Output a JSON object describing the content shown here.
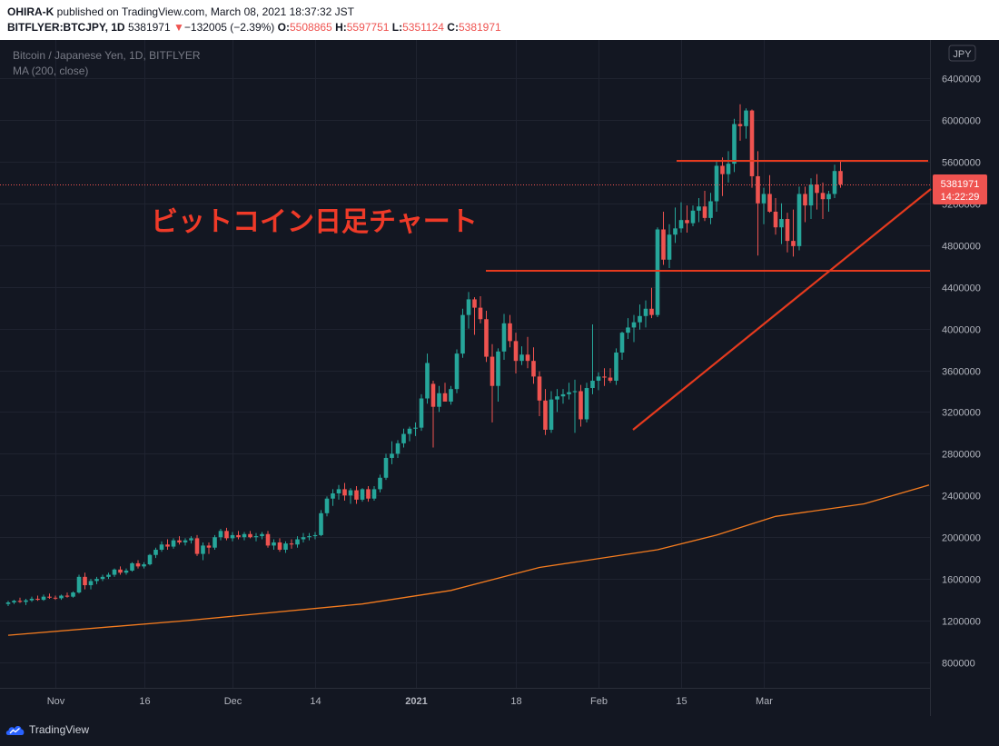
{
  "header": {
    "author": "OHIRA-K",
    "published_text": "published on TradingView.com, March 08, 2021 18:37:32 JST",
    "symbol": "BITFLYER:BTCJPY, 1D",
    "last_price": "5381971",
    "change_arrow": "▼",
    "change": "−132005 (−2.39%)",
    "o_label": "O:",
    "open": "5508865",
    "h_label": "H:",
    "high": "5597751",
    "l_label": "L:",
    "low": "5351124",
    "c_label": "C:",
    "close": "5381971"
  },
  "legend": {
    "title": "Bitcoin / Japanese Yen, 1D, BITFLYER",
    "indicator": "MA (200, close)"
  },
  "annotation": "ビットコイン日足チャート",
  "price_label": {
    "value": "5381971",
    "countdown": "14:22:29"
  },
  "currency": "JPY",
  "footer": {
    "brand": "TradingView"
  },
  "colors": {
    "up": "#26a69a",
    "down": "#ef5350",
    "ma": "#f57c1f",
    "drawing": "#e53a1e",
    "background": "#131722",
    "grid": "#1f2330",
    "axis_text": "#b2b5be"
  },
  "chart_data": {
    "type": "candlestick",
    "title": "Bitcoin / Japanese Yen, 1D, BITFLYER",
    "ylim": [
      400000,
      6800000
    ],
    "y_ticks": [
      800000,
      1200000,
      1600000,
      2000000,
      2400000,
      2800000,
      3200000,
      3600000,
      4000000,
      4400000,
      4800000,
      5200000,
      5600000,
      6000000,
      6400000
    ],
    "x_ticks": [
      {
        "label": "Nov",
        "bar": 8
      },
      {
        "label": "16",
        "bar": 23
      },
      {
        "label": "Dec",
        "bar": 38
      },
      {
        "label": "14",
        "bar": 52
      },
      {
        "label": "2021",
        "bar": 69
      },
      {
        "label": "18",
        "bar": 86
      },
      {
        "label": "Feb",
        "bar": 100
      },
      {
        "label": "15",
        "bar": 114
      },
      {
        "label": "Mar",
        "bar": 128
      }
    ],
    "ohlc": [
      [
        1360000,
        1390000,
        1340000,
        1375000
      ],
      [
        1375000,
        1400000,
        1360000,
        1390000
      ],
      [
        1390000,
        1420000,
        1370000,
        1380000
      ],
      [
        1380000,
        1410000,
        1350000,
        1395000
      ],
      [
        1395000,
        1430000,
        1380000,
        1410000
      ],
      [
        1410000,
        1440000,
        1390000,
        1400000
      ],
      [
        1400000,
        1450000,
        1390000,
        1430000
      ],
      [
        1430000,
        1460000,
        1410000,
        1420000
      ],
      [
        1420000,
        1440000,
        1400000,
        1415000
      ],
      [
        1415000,
        1450000,
        1400000,
        1440000
      ],
      [
        1440000,
        1470000,
        1420000,
        1430000
      ],
      [
        1430000,
        1480000,
        1420000,
        1470000
      ],
      [
        1470000,
        1640000,
        1460000,
        1620000
      ],
      [
        1620000,
        1660000,
        1500000,
        1540000
      ],
      [
        1540000,
        1600000,
        1500000,
        1580000
      ],
      [
        1580000,
        1620000,
        1550000,
        1600000
      ],
      [
        1600000,
        1640000,
        1580000,
        1620000
      ],
      [
        1620000,
        1660000,
        1600000,
        1640000
      ],
      [
        1640000,
        1700000,
        1620000,
        1690000
      ],
      [
        1690000,
        1720000,
        1640000,
        1660000
      ],
      [
        1660000,
        1700000,
        1640000,
        1680000
      ],
      [
        1680000,
        1760000,
        1670000,
        1750000
      ],
      [
        1750000,
        1780000,
        1700000,
        1720000
      ],
      [
        1720000,
        1760000,
        1700000,
        1740000
      ],
      [
        1740000,
        1840000,
        1730000,
        1830000
      ],
      [
        1830000,
        1900000,
        1800000,
        1880000
      ],
      [
        1880000,
        1960000,
        1860000,
        1930000
      ],
      [
        1930000,
        1980000,
        1880000,
        1910000
      ],
      [
        1910000,
        1990000,
        1890000,
        1970000
      ],
      [
        1970000,
        2010000,
        1930000,
        1950000
      ],
      [
        1950000,
        1990000,
        1920000,
        1970000
      ],
      [
        1970000,
        2010000,
        1940000,
        1990000
      ],
      [
        1990000,
        2020000,
        1820000,
        1840000
      ],
      [
        1840000,
        1950000,
        1780000,
        1920000
      ],
      [
        1920000,
        1950000,
        1840000,
        1900000
      ],
      [
        1900000,
        2020000,
        1880000,
        2000000
      ],
      [
        2000000,
        2080000,
        1970000,
        2060000
      ],
      [
        2060000,
        2090000,
        1970000,
        1990000
      ],
      [
        1990000,
        2050000,
        1960000,
        2020000
      ],
      [
        2020000,
        2060000,
        1980000,
        2000000
      ],
      [
        2000000,
        2050000,
        1970000,
        2030000
      ],
      [
        2030000,
        2060000,
        1990000,
        2000000
      ],
      [
        2000000,
        2040000,
        1960000,
        2010000
      ],
      [
        2010000,
        2050000,
        1980000,
        2030000
      ],
      [
        2030000,
        2060000,
        1900000,
        1920000
      ],
      [
        1920000,
        1980000,
        1880000,
        1950000
      ],
      [
        1950000,
        1990000,
        1860000,
        1880000
      ],
      [
        1880000,
        1960000,
        1850000,
        1940000
      ],
      [
        1940000,
        1980000,
        1890000,
        1930000
      ],
      [
        1930000,
        2010000,
        1900000,
        1980000
      ],
      [
        1980000,
        2040000,
        1950000,
        2000000
      ],
      [
        2000000,
        2040000,
        1970000,
        2010000
      ],
      [
        2010000,
        2050000,
        1980000,
        2020000
      ],
      [
        2020000,
        2260000,
        2010000,
        2230000
      ],
      [
        2230000,
        2390000,
        2200000,
        2370000
      ],
      [
        2370000,
        2460000,
        2300000,
        2420000
      ],
      [
        2420000,
        2500000,
        2360000,
        2460000
      ],
      [
        2460000,
        2520000,
        2350000,
        2400000
      ],
      [
        2400000,
        2470000,
        2320000,
        2450000
      ],
      [
        2450000,
        2490000,
        2320000,
        2360000
      ],
      [
        2360000,
        2470000,
        2340000,
        2460000
      ],
      [
        2460000,
        2490000,
        2340000,
        2370000
      ],
      [
        2370000,
        2490000,
        2350000,
        2460000
      ],
      [
        2460000,
        2600000,
        2430000,
        2570000
      ],
      [
        2570000,
        2800000,
        2550000,
        2760000
      ],
      [
        2760000,
        2920000,
        2700000,
        2800000
      ],
      [
        2800000,
        2930000,
        2760000,
        2900000
      ],
      [
        2900000,
        3040000,
        2860000,
        2990000
      ],
      [
        2990000,
        3060000,
        2920000,
        3040000
      ],
      [
        3040000,
        3100000,
        2970000,
        3050000
      ],
      [
        3050000,
        3370000,
        3020000,
        3330000
      ],
      [
        3330000,
        3760000,
        3280000,
        3670000
      ],
      [
        3470000,
        3500000,
        2860000,
        3250000
      ],
      [
        3250000,
        3450000,
        3200000,
        3380000
      ],
      [
        3380000,
        3480000,
        3320000,
        3300000
      ],
      [
        3300000,
        3450000,
        3270000,
        3420000
      ],
      [
        3420000,
        3800000,
        3380000,
        3760000
      ],
      [
        3760000,
        4190000,
        3720000,
        4130000
      ],
      [
        4130000,
        4350000,
        4000000,
        4280000
      ],
      [
        4280000,
        4300000,
        3940000,
        4200000
      ],
      [
        4200000,
        4310000,
        4050000,
        4090000
      ],
      [
        4090000,
        4170000,
        3680000,
        3730000
      ],
      [
        3730000,
        3850000,
        3100000,
        3450000
      ],
      [
        3450000,
        3810000,
        3300000,
        3780000
      ],
      [
        3780000,
        4140000,
        3700000,
        4050000
      ],
      [
        4050000,
        4130000,
        3820000,
        3880000
      ],
      [
        3880000,
        3960000,
        3570000,
        3690000
      ],
      [
        3690000,
        3830000,
        3650000,
        3750000
      ],
      [
        3750000,
        3920000,
        3620000,
        3690000
      ],
      [
        3690000,
        3820000,
        3470000,
        3540000
      ],
      [
        3540000,
        3590000,
        3160000,
        3310000
      ],
      [
        3310000,
        3420000,
        2980000,
        3030000
      ],
      [
        3030000,
        3400000,
        3000000,
        3320000
      ],
      [
        3320000,
        3420000,
        3200000,
        3350000
      ],
      [
        3350000,
        3420000,
        3280000,
        3370000
      ],
      [
        3370000,
        3480000,
        3320000,
        3390000
      ],
      [
        3390000,
        3510000,
        3000000,
        3400000
      ],
      [
        3400000,
        3460000,
        3060000,
        3130000
      ],
      [
        3130000,
        3480000,
        3100000,
        3430000
      ],
      [
        3430000,
        4040000,
        3370000,
        3500000
      ],
      [
        3500000,
        3580000,
        3410000,
        3540000
      ],
      [
        3540000,
        3620000,
        3450000,
        3530000
      ],
      [
        3530000,
        3620000,
        3480000,
        3500000
      ],
      [
        3500000,
        3810000,
        3460000,
        3770000
      ],
      [
        3770000,
        3970000,
        3700000,
        3960000
      ],
      [
        3960000,
        4100000,
        3900000,
        4010000
      ],
      [
        4010000,
        4130000,
        3870000,
        4060000
      ],
      [
        4060000,
        4230000,
        3990000,
        4120000
      ],
      [
        4120000,
        4270000,
        4010000,
        4190000
      ],
      [
        4190000,
        4390000,
        4100000,
        4130000
      ],
      [
        4130000,
        4970000,
        4110000,
        4950000
      ],
      [
        4950000,
        5120000,
        4610000,
        4660000
      ],
      [
        4660000,
        5000000,
        4580000,
        4900000
      ],
      [
        4900000,
        5160000,
        4820000,
        4960000
      ],
      [
        4960000,
        5210000,
        4920000,
        5040000
      ],
      [
        5040000,
        5180000,
        4920000,
        5010000
      ],
      [
        5010000,
        5180000,
        4980000,
        5130000
      ],
      [
        5130000,
        5250000,
        5020000,
        5170000
      ],
      [
        5170000,
        5320000,
        5030000,
        5060000
      ],
      [
        5060000,
        5300000,
        5000000,
        5220000
      ],
      [
        5220000,
        5600000,
        5120000,
        5560000
      ],
      [
        5560000,
        5640000,
        5270000,
        5480000
      ],
      [
        5480000,
        5700000,
        5400000,
        5580000
      ],
      [
        5580000,
        6010000,
        5500000,
        5960000
      ],
      [
        5960000,
        6150000,
        5800000,
        5940000
      ],
      [
        5940000,
        6110000,
        5820000,
        6090000
      ],
      [
        6090000,
        6100000,
        5350000,
        5460000
      ],
      [
        5460000,
        5700000,
        4700000,
        5200000
      ],
      [
        5200000,
        5350000,
        5000000,
        5290000
      ],
      [
        5290000,
        5470000,
        5110000,
        5120000
      ],
      [
        5120000,
        5250000,
        4900000,
        4970000
      ],
      [
        4970000,
        5200000,
        4810000,
        5050000
      ],
      [
        5050000,
        5110000,
        4730000,
        4840000
      ],
      [
        4840000,
        5140000,
        4690000,
        4790000
      ],
      [
        4790000,
        5360000,
        4750000,
        5290000
      ],
      [
        5290000,
        5360000,
        5020000,
        5180000
      ],
      [
        5180000,
        5440000,
        5050000,
        5380000
      ],
      [
        5380000,
        5480000,
        5140000,
        5300000
      ],
      [
        5300000,
        5400000,
        5050000,
        5240000
      ],
      [
        5240000,
        5320000,
        5120000,
        5290000
      ],
      [
        5290000,
        5570000,
        5250000,
        5510000
      ],
      [
        5510000,
        5600000,
        5350000,
        5382000
      ]
    ],
    "ma200": [
      [
        0,
        1060000
      ],
      [
        30,
        1200000
      ],
      [
        60,
        1360000
      ],
      [
        75,
        1490000
      ],
      [
        90,
        1710000
      ],
      [
        110,
        1880000
      ],
      [
        120,
        2020000
      ],
      [
        130,
        2200000
      ],
      [
        145,
        2320000
      ],
      [
        156,
        2500000
      ]
    ]
  }
}
